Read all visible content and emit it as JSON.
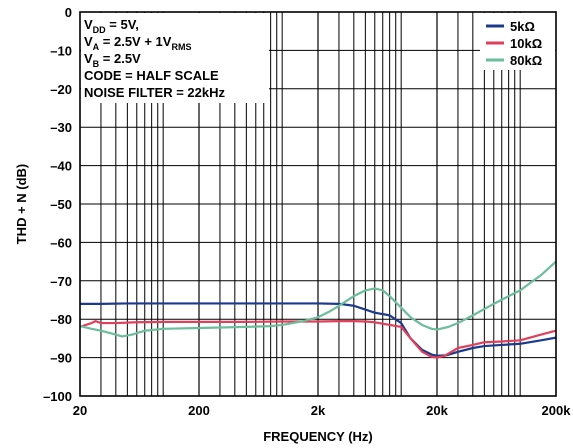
{
  "chart_data": {
    "type": "line",
    "xlabel": "FREQUENCY (Hz)",
    "ylabel": "THD + N (dB)",
    "xscale": "log",
    "xlim": [
      20,
      200000
    ],
    "ylim": [
      -100,
      0
    ],
    "grid": true,
    "legend_position": "top-right",
    "x_ticks": [
      {
        "value": 20,
        "label": "20"
      },
      {
        "value": 200,
        "label": "200"
      },
      {
        "value": 2000,
        "label": "2k"
      },
      {
        "value": 20000,
        "label": "20k"
      },
      {
        "value": 200000,
        "label": "200k"
      }
    ],
    "y_ticks": [
      {
        "value": 0,
        "label": "0"
      },
      {
        "value": -10,
        "label": "–10"
      },
      {
        "value": -20,
        "label": "–20"
      },
      {
        "value": -30,
        "label": "–30"
      },
      {
        "value": -40,
        "label": "–40"
      },
      {
        "value": -50,
        "label": "–50"
      },
      {
        "value": -60,
        "label": "–60"
      },
      {
        "value": -70,
        "label": "–70"
      },
      {
        "value": -80,
        "label": "–80"
      },
      {
        "value": -90,
        "label": "–90"
      },
      {
        "value": -100,
        "label": "–100"
      }
    ],
    "annotations": [
      {
        "main": "V",
        "sub": "DD",
        "rest": " = 5V,"
      },
      {
        "main": "V",
        "sub": "A",
        "rest": " = 2.5V + 1V",
        "sub2": "RMS"
      },
      {
        "main": "V",
        "sub": "B",
        "rest": " = 2.5V"
      },
      {
        "main": "CODE = HALF SCALE",
        "sub": "",
        "rest": ""
      },
      {
        "main": "NOISE FILTER = 22kHz",
        "sub": "",
        "rest": ""
      }
    ],
    "series": [
      {
        "name": "5kΩ",
        "color": "#1c3a8c",
        "points": [
          [
            20,
            -76
          ],
          [
            30,
            -76
          ],
          [
            50,
            -75.9
          ],
          [
            100,
            -75.9
          ],
          [
            200,
            -75.9
          ],
          [
            500,
            -75.9
          ],
          [
            1000,
            -75.9
          ],
          [
            2000,
            -75.9
          ],
          [
            3000,
            -76
          ],
          [
            4000,
            -76.5
          ],
          [
            5000,
            -77.5
          ],
          [
            6000,
            -78.3
          ],
          [
            8000,
            -79
          ],
          [
            10000,
            -81
          ],
          [
            12000,
            -85
          ],
          [
            15000,
            -88
          ],
          [
            18000,
            -89.2
          ],
          [
            20000,
            -89.5
          ],
          [
            24000,
            -89.4
          ],
          [
            30000,
            -88.5
          ],
          [
            40000,
            -87.5
          ],
          [
            50000,
            -87
          ],
          [
            70000,
            -86.7
          ],
          [
            100000,
            -86.4
          ],
          [
            150000,
            -85.5
          ],
          [
            200000,
            -84.8
          ]
        ]
      },
      {
        "name": "10kΩ",
        "color": "#e0405a",
        "points": [
          [
            20,
            -82
          ],
          [
            25,
            -81
          ],
          [
            27,
            -80.5
          ],
          [
            30,
            -81
          ],
          [
            40,
            -81
          ],
          [
            60,
            -80.8
          ],
          [
            100,
            -80.7
          ],
          [
            200,
            -80.7
          ],
          [
            500,
            -80.7
          ],
          [
            1000,
            -80.6
          ],
          [
            2000,
            -80.6
          ],
          [
            3000,
            -80.5
          ],
          [
            4000,
            -80.5
          ],
          [
            5000,
            -80.6
          ],
          [
            6000,
            -80.8
          ],
          [
            8000,
            -81.5
          ],
          [
            10000,
            -82
          ],
          [
            12000,
            -85
          ],
          [
            15000,
            -88.5
          ],
          [
            18000,
            -89.8
          ],
          [
            20000,
            -90
          ],
          [
            23000,
            -89.6
          ],
          [
            30000,
            -87.5
          ],
          [
            40000,
            -86.7
          ],
          [
            50000,
            -86
          ],
          [
            70000,
            -85.8
          ],
          [
            100000,
            -85.5
          ],
          [
            150000,
            -84
          ],
          [
            200000,
            -83
          ]
        ]
      },
      {
        "name": "80kΩ",
        "color": "#6cbd9c",
        "points": [
          [
            20,
            -81.8
          ],
          [
            25,
            -82.5
          ],
          [
            30,
            -83
          ],
          [
            40,
            -84
          ],
          [
            45,
            -84.5
          ],
          [
            55,
            -84
          ],
          [
            70,
            -83
          ],
          [
            100,
            -82.5
          ],
          [
            200,
            -82.3
          ],
          [
            500,
            -82
          ],
          [
            800,
            -81.8
          ],
          [
            1000,
            -81.5
          ],
          [
            1500,
            -80.5
          ],
          [
            2000,
            -79.5
          ],
          [
            2500,
            -78
          ],
          [
            3000,
            -76.5
          ],
          [
            4000,
            -74
          ],
          [
            5000,
            -72.5
          ],
          [
            6000,
            -72
          ],
          [
            7000,
            -72.5
          ],
          [
            8000,
            -74
          ],
          [
            10000,
            -77
          ],
          [
            12000,
            -79.5
          ],
          [
            15000,
            -81.5
          ],
          [
            18000,
            -82.5
          ],
          [
            20000,
            -82.7
          ],
          [
            25000,
            -82
          ],
          [
            30000,
            -81
          ],
          [
            40000,
            -79
          ],
          [
            60000,
            -76
          ],
          [
            80000,
            -74
          ],
          [
            100000,
            -72.5
          ],
          [
            150000,
            -68.5
          ],
          [
            200000,
            -65
          ]
        ]
      }
    ]
  }
}
